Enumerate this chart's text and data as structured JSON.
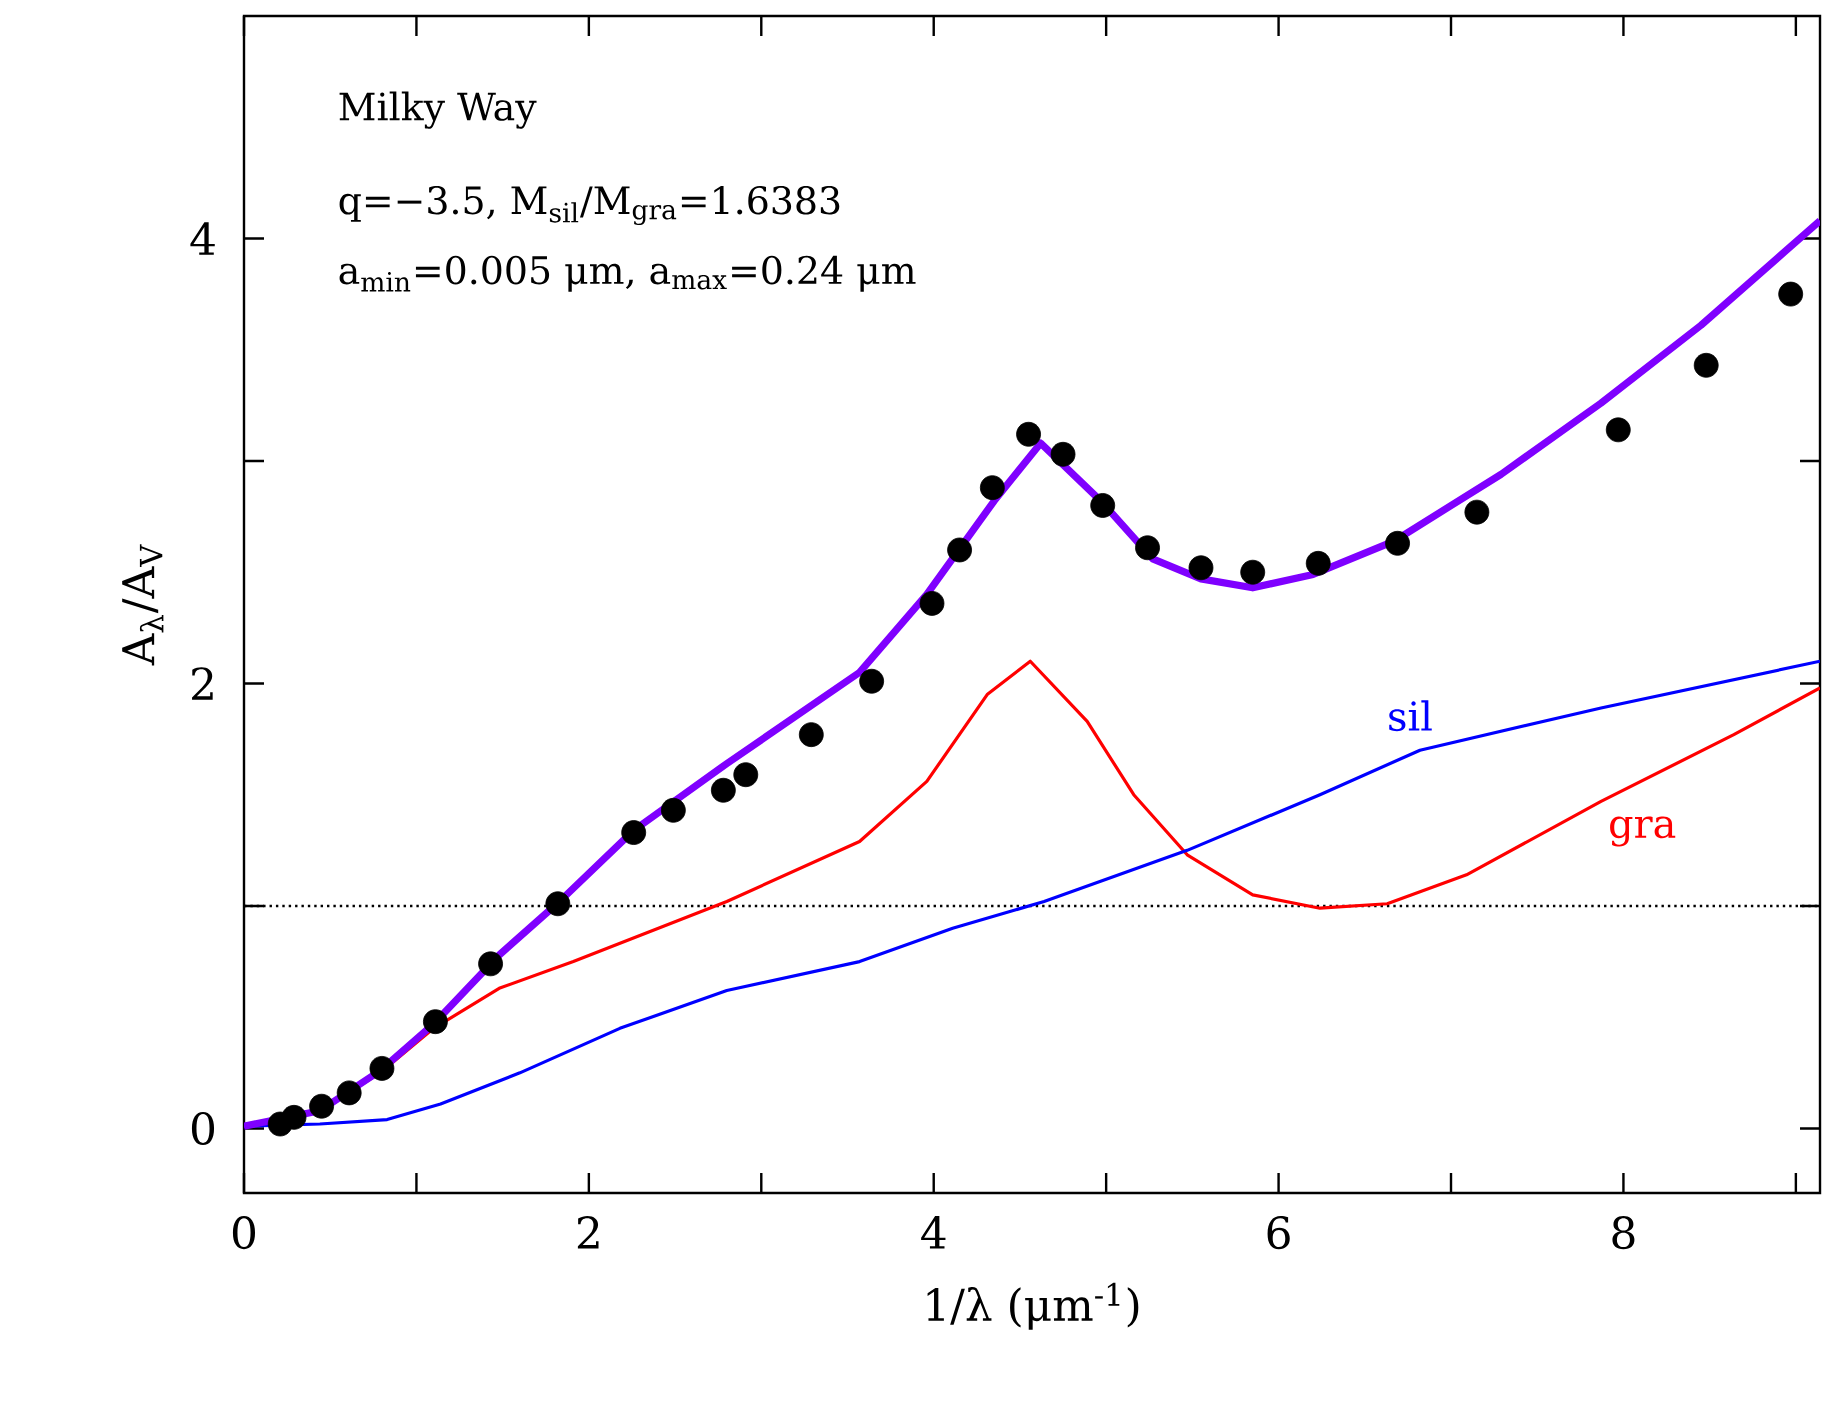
{
  "chart_data": {
    "type": "line",
    "xlabel": "1/λ (μm$^{-1}$)",
    "ylabel": "A$_{λ}$/A$_{V}$",
    "annotations": [
      "Milky Way",
      "q=−3.5,   M$_{sil}$/M$_{gra}$=1.6383",
      "a$_{min}$=0.005 μm, a$_{max}$=0.24 μm"
    ],
    "xlim": [
      0,
      9.14
    ],
    "ylim": [
      -0.29,
      5
    ],
    "xticks": [
      0,
      {
        "value": 1,
        "label": null
      },
      2,
      {
        "value": 3,
        "label": null
      },
      4,
      {
        "value": 5,
        "label": null
      },
      6,
      {
        "value": 7,
        "label": null
      },
      8,
      {
        "value": 9,
        "label": null
      }
    ],
    "yticks": [
      0,
      {
        "value": 1,
        "label": null
      },
      2,
      {
        "value": 3,
        "label": null
      },
      4
    ],
    "grid": false,
    "legend": false,
    "ref_lines": [
      {
        "axis": "y",
        "value": 1,
        "label": null,
        "color": "#000000",
        "line_style": "dotted"
      }
    ],
    "series": [
      {
        "name": "gra",
        "color": "#ff0000",
        "marker": "none",
        "line_style": "solid",
        "x": [
          0,
          0.44,
          0.79,
          1.1,
          1.48,
          1.91,
          2.8,
          3.57,
          3.96,
          4.31,
          4.56,
          4.89,
          5.16,
          5.47,
          5.85,
          6.24,
          6.63,
          7.09,
          7.87,
          8.64,
          9.14
        ],
        "values": [
          0.01,
          0.08,
          0.25,
          0.45,
          0.63,
          0.75,
          1.02,
          1.29,
          1.56,
          1.95,
          2.1,
          1.83,
          1.5,
          1.23,
          1.05,
          0.99,
          1.01,
          1.14,
          1.47,
          1.77,
          1.98
        ]
      },
      {
        "name": "sil",
        "color": "#0000ff",
        "marker": "none",
        "line_style": "solid",
        "x": [
          0,
          0.44,
          0.83,
          1.14,
          1.6,
          2.18,
          2.8,
          3.57,
          4.11,
          4.64,
          5.47,
          6.24,
          6.82,
          7.87,
          9.14
        ],
        "values": [
          0.01,
          0.02,
          0.04,
          0.11,
          0.25,
          0.45,
          0.62,
          0.75,
          0.9,
          1.02,
          1.25,
          1.5,
          1.7,
          1.89,
          2.1
        ]
      },
      {
        "color": "#7f00ff",
        "marker": "none",
        "line_style": "solid",
        "x": [
          0,
          0.44,
          0.79,
          1.1,
          1.48,
          1.83,
          2.26,
          2.8,
          3.57,
          3.96,
          4.35,
          4.62,
          4.97,
          5.27,
          5.55,
          5.85,
          6.2,
          6.67,
          7.29,
          7.87,
          8.45,
          9.14
        ],
        "values": [
          0.01,
          0.08,
          0.26,
          0.47,
          0.78,
          1.02,
          1.34,
          1.64,
          2.05,
          2.4,
          2.82,
          3.08,
          2.82,
          2.56,
          2.47,
          2.43,
          2.49,
          2.64,
          2.94,
          3.26,
          3.61,
          4.08
        ]
      },
      {
        "color": "#000000",
        "type": "scatter",
        "marker": "circle",
        "x": [
          0.21,
          0.29,
          0.45,
          0.61,
          0.8,
          1.11,
          1.43,
          1.82,
          2.26,
          2.49,
          2.78,
          2.91,
          3.29,
          3.64,
          3.99,
          4.15,
          4.34,
          4.55,
          4.75,
          4.98,
          5.24,
          5.55,
          5.85,
          6.23,
          6.69,
          7.15,
          7.97,
          8.48,
          8.97
        ],
        "values": [
          0.02,
          0.05,
          0.1,
          0.16,
          0.27,
          0.48,
          0.74,
          1.01,
          1.33,
          1.43,
          1.52,
          1.59,
          1.77,
          2.01,
          2.36,
          2.6,
          2.88,
          3.12,
          3.03,
          2.8,
          2.61,
          2.52,
          2.5,
          2.54,
          2.63,
          2.77,
          3.14,
          3.43,
          3.75
        ]
      }
    ]
  }
}
